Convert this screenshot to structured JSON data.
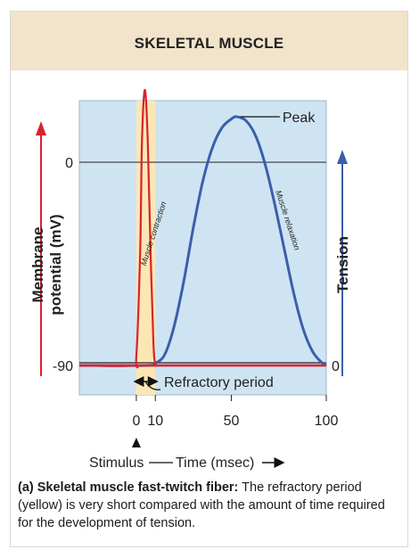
{
  "header": {
    "title": "SKELETAL MUSCLE"
  },
  "chart_data": {
    "type": "line",
    "x_unit": "msec",
    "xlim": [
      -30,
      100
    ],
    "x_ticks": [
      0,
      10,
      50,
      100
    ],
    "x_tick_labels": [
      "0",
      "10",
      "50",
      "100"
    ],
    "left_axis": {
      "label_line1": "Membrane",
      "label_line2": "potential (mV)",
      "ticks": [
        "0",
        "-90"
      ]
    },
    "right_axis": {
      "label": "Tension",
      "ticks": [
        "0"
      ]
    },
    "refractory_period": {
      "x_start": 0,
      "x_end": 10,
      "color": "#fbe7b6"
    },
    "series": [
      {
        "key": "membrane_potential",
        "color": "#d9232e",
        "axis": "left",
        "x": [
          -30,
          -2,
          0,
          2,
          3,
          4.5,
          6,
          7.5,
          9,
          10,
          12,
          15,
          100
        ],
        "y": [
          -90,
          -90,
          -86,
          -40,
          10,
          32,
          10,
          -40,
          -80,
          -89,
          -90,
          -90,
          -90
        ]
      },
      {
        "key": "tension",
        "color": "#3b5fab",
        "axis": "right",
        "x": [
          -30,
          5,
          10,
          15,
          20,
          25,
          30,
          35,
          40,
          45,
          50,
          53,
          58,
          63,
          68,
          73,
          78,
          83,
          88,
          93,
          98,
          100
        ],
        "y": [
          0,
          0,
          1,
          5,
          18,
          38,
          62,
          83,
          98,
          107,
          111,
          112,
          110,
          103,
          90,
          72,
          52,
          32,
          16,
          6,
          1,
          0
        ]
      }
    ],
    "annotations": {
      "peak": "Peak",
      "contraction": "Muscle contraction",
      "relaxation": "Muscle relaxation",
      "refractory": "Refractory period",
      "stimulus": "Stimulus",
      "time_label": "Time (msec)"
    }
  },
  "caption": {
    "bold": "(a) Skeletal muscle fast-twitch fiber:",
    "text": "The refractory period (yellow) is very short compared with the amount of time required for the development of tension."
  }
}
